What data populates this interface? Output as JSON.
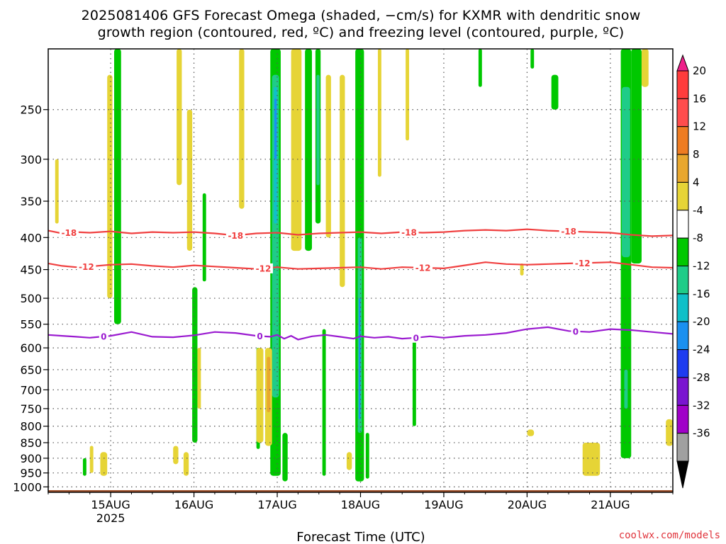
{
  "chart_data": {
    "type": "heatmap",
    "title": "2025081406 GFS Forecast Omega (shaded, −cm/s) for KXMR with dendritic snow",
    "subtitle": "growth region (contoured, red, ºC) and freezing level (contoured, purple, ºC)",
    "xlabel": "Forecast Time (UTC)",
    "ylabel": "",
    "credit": "coolwx.com/models",
    "x_ticks": [
      {
        "label": "15AUG",
        "sub": "2025",
        "t": 18
      },
      {
        "label": "16AUG",
        "sub": "",
        "t": 42
      },
      {
        "label": "17AUG",
        "sub": "",
        "t": 66
      },
      {
        "label": "18AUG",
        "sub": "",
        "t": 90
      },
      {
        "label": "19AUG",
        "sub": "",
        "t": 114
      },
      {
        "label": "20AUG",
        "sub": "",
        "t": 138
      },
      {
        "label": "21AUG",
        "sub": "",
        "t": 162
      }
    ],
    "xlim": [
      0,
      180
    ],
    "y_ticks": [
      250,
      300,
      350,
      400,
      450,
      500,
      550,
      600,
      650,
      700,
      750,
      800,
      850,
      900,
      950,
      1000
    ],
    "ylim": [
      1020,
      200
    ],
    "y_scale": "log-pressure",
    "grid": true,
    "colorbar": {
      "labels": [
        "20",
        "16",
        "12",
        "8",
        "4",
        "-4",
        "-8",
        "-12",
        "-16",
        "-20",
        "-24",
        "-28",
        "-32",
        "-36"
      ],
      "bins": [
        {
          "color": "#ff3c3c"
        },
        {
          "color": "#ff4d4d"
        },
        {
          "color": "#ee7c22"
        },
        {
          "color": "#e8a72e"
        },
        {
          "color": "#e6d436"
        },
        {
          "color": "#ffffff"
        },
        {
          "color": "#00c800"
        },
        {
          "color": "#1fcc88"
        },
        {
          "color": "#10c0c8"
        },
        {
          "color": "#1a90f0"
        },
        {
          "color": "#1e3cf0"
        },
        {
          "color": "#7a14d0"
        },
        {
          "color": "#a000c8"
        },
        {
          "color": "#a0a0a0"
        }
      ],
      "top_arrow_color": "#ee1f8a",
      "bottom_arrow_color": "#000000"
    },
    "contours": [
      {
        "name": "-18",
        "color": "#f04040",
        "x": [
          0,
          4,
          8,
          12,
          18,
          24,
          30,
          36,
          42,
          48,
          54,
          60,
          66,
          72,
          78,
          84,
          90,
          96,
          102,
          108,
          114,
          120,
          126,
          132,
          138,
          144,
          150,
          156,
          162,
          168,
          174,
          180
        ],
        "y": [
          390,
          394,
          392,
          393,
          391,
          394,
          392,
          393,
          392,
          394,
          397,
          394,
          393,
          396,
          394,
          393,
          392,
          394,
          392,
          393,
          392,
          390,
          389,
          390,
          388,
          390,
          391,
          392,
          393,
          396,
          398,
          397
        ],
        "label_t": [
          6,
          54,
          104,
          150
        ]
      },
      {
        "name": "-12",
        "color": "#f04040",
        "x": [
          0,
          4,
          8,
          12,
          18,
          24,
          30,
          36,
          42,
          48,
          54,
          60,
          66,
          72,
          78,
          84,
          90,
          96,
          102,
          108,
          114,
          120,
          126,
          132,
          138,
          144,
          150,
          156,
          162,
          168,
          174,
          180
        ],
        "y": [
          440,
          444,
          446,
          445,
          442,
          441,
          444,
          446,
          443,
          445,
          447,
          449,
          446,
          449,
          448,
          447,
          446,
          449,
          446,
          447,
          448,
          443,
          438,
          441,
          442,
          441,
          440,
          439,
          438,
          442,
          446,
          447
        ],
        "label_t": [
          11,
          62,
          108,
          154
        ]
      },
      {
        "name": "0",
        "color": "#9a1ad0",
        "x": [
          0,
          4,
          8,
          12,
          18,
          24,
          30,
          36,
          42,
          48,
          54,
          60,
          64,
          66,
          68,
          70,
          72,
          76,
          80,
          84,
          88,
          90,
          94,
          98,
          102,
          106,
          110,
          114,
          120,
          126,
          132,
          138,
          144,
          150,
          156,
          162,
          168,
          174,
          180
        ],
        "y": [
          572,
          574,
          576,
          578,
          574,
          566,
          576,
          577,
          573,
          566,
          568,
          574,
          576,
          572,
          580,
          574,
          582,
          575,
          572,
          576,
          580,
          575,
          578,
          576,
          580,
          578,
          575,
          578,
          574,
          572,
          568,
          560,
          556,
          564,
          566,
          560,
          562,
          566,
          570
        ],
        "label_t": [
          16,
          61,
          106,
          152
        ]
      }
    ],
    "shaded_regions": [
      {
        "value": -8,
        "t": [
          19,
          21
        ],
        "p": [
          200,
          550
        ]
      },
      {
        "value": 4,
        "t": [
          17,
          18.5
        ],
        "p": [
          220,
          500
        ]
      },
      {
        "value": -8,
        "t": [
          41.5,
          43
        ],
        "p": [
          480,
          850
        ]
      },
      {
        "value": 4,
        "t": [
          40,
          41.5
        ],
        "p": [
          250,
          420
        ]
      },
      {
        "value": 4,
        "t": [
          43,
          44
        ],
        "p": [
          600,
          750
        ]
      },
      {
        "value": -8,
        "t": [
          44.5,
          45.5
        ],
        "p": [
          340,
          470
        ]
      },
      {
        "value": 4,
        "t": [
          37,
          38.5
        ],
        "p": [
          200,
          330
        ]
      },
      {
        "value": 4,
        "t": [
          55,
          56.5
        ],
        "p": [
          200,
          360
        ]
      },
      {
        "value": -8,
        "t": [
          60,
          61
        ],
        "p": [
          600,
          870
        ]
      },
      {
        "value": 4,
        "t": [
          60,
          62
        ],
        "p": [
          600,
          850
        ]
      },
      {
        "value": -8,
        "t": [
          64,
          67
        ],
        "p": [
          200,
          960
        ]
      },
      {
        "value": -12,
        "t": [
          64.5,
          66.5
        ],
        "p": [
          220,
          720
        ]
      },
      {
        "value": -16,
        "t": [
          65,
          66
        ],
        "p": [
          230,
          380
        ]
      },
      {
        "value": -20,
        "t": [
          65.2,
          65.8
        ],
        "p": [
          240,
          300
        ]
      },
      {
        "value": 4,
        "t": [
          62.5,
          64.5
        ],
        "p": [
          600,
          860
        ]
      },
      {
        "value": 8,
        "t": [
          63,
          64
        ],
        "p": [
          620,
          760
        ]
      },
      {
        "value": -8,
        "t": [
          67.5,
          69
        ],
        "p": [
          820,
          980
        ]
      },
      {
        "value": -8,
        "t": [
          74,
          76
        ],
        "p": [
          200,
          420
        ]
      },
      {
        "value": -8,
        "t": [
          77,
          78.5
        ],
        "p": [
          200,
          380
        ]
      },
      {
        "value": -12,
        "t": [
          77.3,
          78.2
        ],
        "p": [
          220,
          330
        ]
      },
      {
        "value": 4,
        "t": [
          70,
          73
        ],
        "p": [
          200,
          420
        ]
      },
      {
        "value": -8,
        "t": [
          79,
          80
        ],
        "p": [
          560,
          960
        ]
      },
      {
        "value": 4,
        "t": [
          80,
          81.5
        ],
        "p": [
          220,
          400
        ]
      },
      {
        "value": -8,
        "t": [
          88.5,
          91
        ],
        "p": [
          200,
          980
        ]
      },
      {
        "value": -12,
        "t": [
          89.2,
          90.4
        ],
        "p": [
          400,
          820
        ]
      },
      {
        "value": -20,
        "t": [
          89.5,
          90
        ],
        "p": [
          500,
          780
        ]
      },
      {
        "value": -8,
        "t": [
          91.5,
          92.5
        ],
        "p": [
          820,
          970
        ]
      },
      {
        "value": 4,
        "t": [
          84,
          85.5
        ],
        "p": [
          220,
          480
        ]
      },
      {
        "value": 4,
        "t": [
          95,
          96
        ],
        "p": [
          200,
          320
        ]
      },
      {
        "value": -8,
        "t": [
          105,
          106
        ],
        "p": [
          580,
          800
        ]
      },
      {
        "value": 4,
        "t": [
          103,
          104
        ],
        "p": [
          200,
          280
        ]
      },
      {
        "value": -8,
        "t": [
          124,
          125
        ],
        "p": [
          200,
          230
        ]
      },
      {
        "value": -8,
        "t": [
          145,
          147
        ],
        "p": [
          220,
          250
        ]
      },
      {
        "value": 4,
        "t": [
          136,
          137
        ],
        "p": [
          440,
          460
        ]
      },
      {
        "value": 4,
        "t": [
          138,
          140
        ],
        "p": [
          810,
          830
        ]
      },
      {
        "value": 4,
        "t": [
          154,
          159
        ],
        "p": [
          850,
          960
        ]
      },
      {
        "value": -8,
        "t": [
          165,
          168
        ],
        "p": [
          200,
          900
        ]
      },
      {
        "value": -12,
        "t": [
          165.3,
          167.7
        ],
        "p": [
          230,
          430
        ]
      },
      {
        "value": -12,
        "t": [
          166,
          167
        ],
        "p": [
          650,
          750
        ]
      },
      {
        "value": -8,
        "t": [
          168,
          171
        ],
        "p": [
          200,
          440
        ]
      },
      {
        "value": 4,
        "t": [
          171,
          173
        ],
        "p": [
          200,
          230
        ]
      },
      {
        "value": 4,
        "t": [
          178,
          180
        ],
        "p": [
          780,
          860
        ]
      },
      {
        "value": -8,
        "t": [
          139,
          140
        ],
        "p": [
          200,
          215
        ]
      },
      {
        "value": 4,
        "t": [
          2,
          3
        ],
        "p": [
          300,
          380
        ]
      },
      {
        "value": 4,
        "t": [
          12,
          13
        ],
        "p": [
          860,
          950
        ]
      },
      {
        "value": 4,
        "t": [
          15,
          17
        ],
        "p": [
          880,
          960
        ]
      },
      {
        "value": -8,
        "t": [
          10,
          11
        ],
        "p": [
          900,
          960
        ]
      },
      {
        "value": 4,
        "t": [
          36,
          37.5
        ],
        "p": [
          860,
          920
        ]
      },
      {
        "value": 4,
        "t": [
          39,
          40.5
        ],
        "p": [
          880,
          960
        ]
      },
      {
        "value": 4,
        "t": [
          86,
          87.5
        ],
        "p": [
          880,
          940
        ]
      }
    ],
    "terrain_color": "#a0522d"
  }
}
